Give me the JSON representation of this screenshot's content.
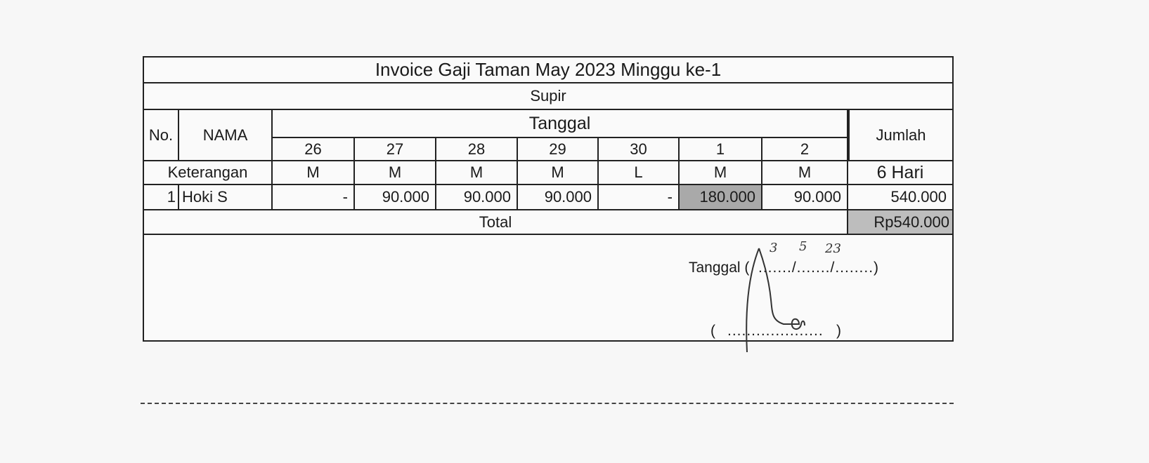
{
  "invoice": {
    "title": "Invoice Gaji Taman May 2023 Minggu ke-1",
    "role": "Supir",
    "headers": {
      "no": "No.",
      "nama": "NAMA",
      "tanggal": "Tanggal",
      "jumlah": "Jumlah",
      "keterangan": "Keterangan"
    },
    "dates": [
      "26",
      "27",
      "28",
      "29",
      "30",
      "1",
      "2"
    ],
    "status": [
      "M",
      "M",
      "M",
      "M",
      "L",
      "M",
      "M"
    ],
    "status_total": "6 Hari",
    "rows": [
      {
        "no": "1",
        "nama": "Hoki S",
        "values": [
          "-",
          "90.000",
          "90.000",
          "90.000",
          "-",
          "180.000",
          "90.000"
        ],
        "jumlah": "540.000"
      }
    ],
    "total_label": "Total",
    "total_value": "Rp540.000",
    "highlight_color": "#a9a9a9"
  },
  "signature": {
    "date_label": "Tanggal (",
    "date_template": "......./......./........)",
    "handwritten_day": "3",
    "handwritten_month": "5",
    "handwritten_year": "23",
    "name_open": "(",
    "name_dots": "....................",
    "name_close": ")",
    "signature_text": "Ari"
  }
}
